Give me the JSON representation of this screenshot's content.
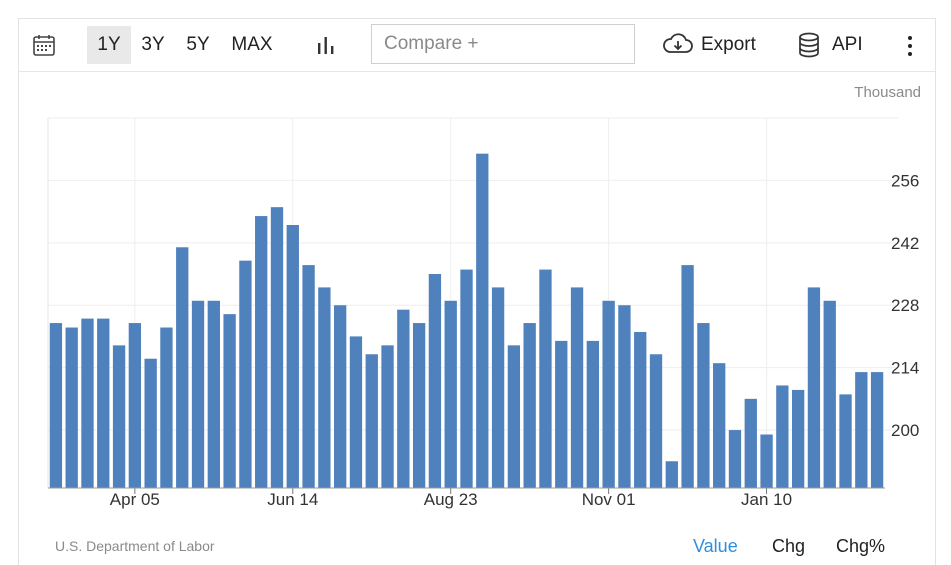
{
  "toolbar": {
    "ranges": [
      "1Y",
      "3Y",
      "5Y",
      "MAX"
    ],
    "active_range": "1Y",
    "compare_placeholder": "Compare +",
    "export_label": "Export",
    "api_label": "API"
  },
  "unit_label": "Thousand",
  "source": "U.S. Department of Labor",
  "view_tabs": [
    "Value",
    "Chg",
    "Chg%"
  ],
  "active_view": "Value",
  "colors": {
    "bar": "#4f81bd",
    "active_tab": "#2e8ee0"
  },
  "chart_data": {
    "type": "bar",
    "title": "",
    "xlabel": "",
    "ylabel": "",
    "ylim": [
      187,
      270
    ],
    "y_ticks": [
      200,
      214,
      228,
      242,
      256
    ],
    "grid": true,
    "y_axis_side": "right",
    "x_tick_labels": [
      {
        "label": "Apr 05",
        "index": 5
      },
      {
        "label": "Jun 14",
        "index": 15
      },
      {
        "label": "Aug 23",
        "index": 25
      },
      {
        "label": "Nov 01",
        "index": 35
      },
      {
        "label": "Jan 10",
        "index": 45
      }
    ],
    "values": [
      224,
      223,
      225,
      225,
      219,
      224,
      216,
      223,
      241,
      229,
      229,
      226,
      238,
      248,
      250,
      246,
      237,
      232,
      228,
      221,
      217,
      219,
      227,
      224,
      235,
      229,
      236,
      262,
      232,
      219,
      224,
      236,
      220,
      232,
      220,
      229,
      228,
      222,
      217,
      193,
      237,
      224,
      215,
      200,
      207,
      199,
      210,
      209,
      232,
      229,
      208,
      213,
      213
    ]
  }
}
